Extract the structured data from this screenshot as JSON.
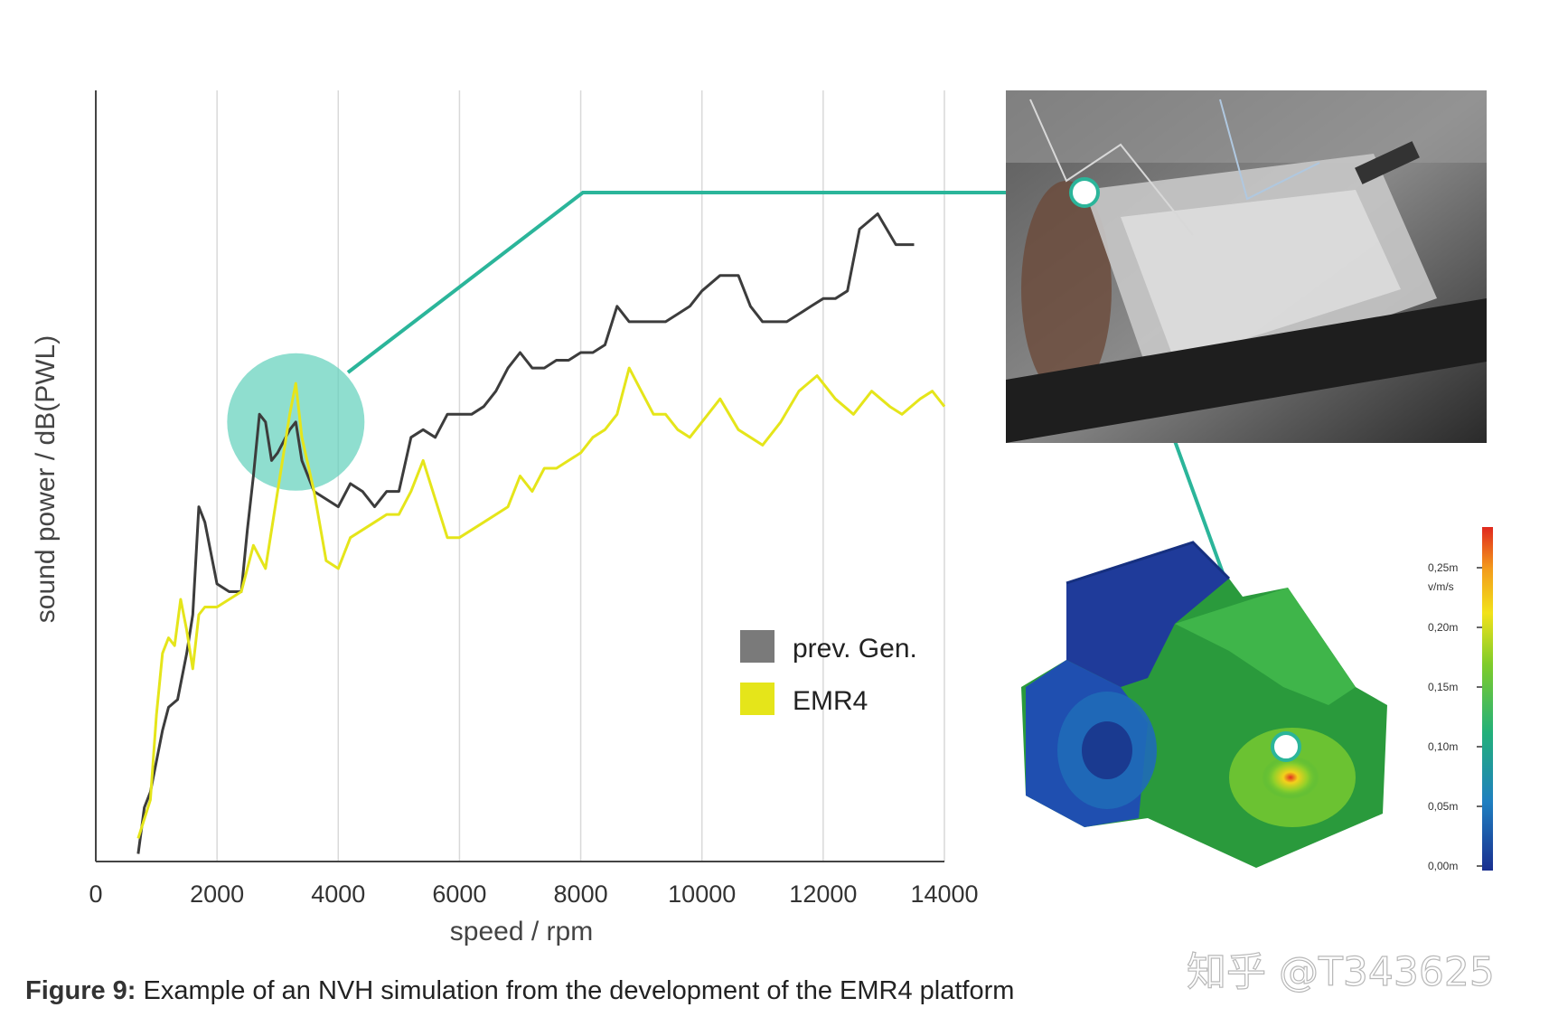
{
  "chart_data": {
    "type": "line",
    "title": "",
    "xlabel": "speed / rpm",
    "ylabel": "sound power / dB(PWL)",
    "xlim": [
      0,
      14000
    ],
    "ylim": [
      0,
      100
    ],
    "xticks": [
      "0",
      "2000",
      "4000",
      "6000",
      "8000",
      "10000",
      "12000",
      "14000"
    ],
    "grid": "vertical",
    "legend_position": "bottom-right",
    "series": [
      {
        "name": "prev. Gen.",
        "color": "#3c3c3c",
        "points": [
          [
            700,
            1
          ],
          [
            800,
            7
          ],
          [
            900,
            9
          ],
          [
            1100,
            17
          ],
          [
            1200,
            20
          ],
          [
            1350,
            21
          ],
          [
            1500,
            27
          ],
          [
            1600,
            32
          ],
          [
            1700,
            46
          ],
          [
            1800,
            44
          ],
          [
            2000,
            36
          ],
          [
            2200,
            35
          ],
          [
            2400,
            35
          ],
          [
            2500,
            43
          ],
          [
            2600,
            50
          ],
          [
            2700,
            58
          ],
          [
            2800,
            57
          ],
          [
            2900,
            52
          ],
          [
            3000,
            53
          ],
          [
            3200,
            56
          ],
          [
            3300,
            57
          ],
          [
            3400,
            52
          ],
          [
            3600,
            48
          ],
          [
            3800,
            47
          ],
          [
            4000,
            46
          ],
          [
            4200,
            49
          ],
          [
            4400,
            48
          ],
          [
            4600,
            46
          ],
          [
            4800,
            48
          ],
          [
            5000,
            48
          ],
          [
            5200,
            55
          ],
          [
            5400,
            56
          ],
          [
            5600,
            55
          ],
          [
            5800,
            58
          ],
          [
            6000,
            58
          ],
          [
            6200,
            58
          ],
          [
            6400,
            59
          ],
          [
            6600,
            61
          ],
          [
            6800,
            64
          ],
          [
            7000,
            66
          ],
          [
            7200,
            64
          ],
          [
            7400,
            64
          ],
          [
            7600,
            65
          ],
          [
            7800,
            65
          ],
          [
            8000,
            66
          ],
          [
            8200,
            66
          ],
          [
            8400,
            67
          ],
          [
            8600,
            72
          ],
          [
            8800,
            70
          ],
          [
            9000,
            70
          ],
          [
            9200,
            70
          ],
          [
            9400,
            70
          ],
          [
            9600,
            71
          ],
          [
            9800,
            72
          ],
          [
            10000,
            74
          ],
          [
            10300,
            76
          ],
          [
            10600,
            76
          ],
          [
            10800,
            72
          ],
          [
            11000,
            70
          ],
          [
            11200,
            70
          ],
          [
            11400,
            70
          ],
          [
            11600,
            71
          ],
          [
            11800,
            72
          ],
          [
            12000,
            73
          ],
          [
            12200,
            73
          ],
          [
            12400,
            74
          ],
          [
            12600,
            82
          ],
          [
            12900,
            84
          ],
          [
            13200,
            80
          ],
          [
            13500,
            80
          ]
        ]
      },
      {
        "name": "EMR4",
        "color": "#e5e51a",
        "points": [
          [
            700,
            3
          ],
          [
            900,
            8
          ],
          [
            1000,
            19
          ],
          [
            1100,
            27
          ],
          [
            1200,
            29
          ],
          [
            1300,
            28
          ],
          [
            1400,
            34
          ],
          [
            1500,
            30
          ],
          [
            1600,
            25
          ],
          [
            1700,
            32
          ],
          [
            1800,
            33
          ],
          [
            2000,
            33
          ],
          [
            2200,
            34
          ],
          [
            2400,
            35
          ],
          [
            2600,
            41
          ],
          [
            2800,
            38
          ],
          [
            3000,
            48
          ],
          [
            3200,
            58
          ],
          [
            3300,
            62
          ],
          [
            3400,
            55
          ],
          [
            3600,
            48
          ],
          [
            3800,
            39
          ],
          [
            4000,
            38
          ],
          [
            4200,
            42
          ],
          [
            4400,
            43
          ],
          [
            4600,
            44
          ],
          [
            4800,
            45
          ],
          [
            5000,
            45
          ],
          [
            5200,
            48
          ],
          [
            5400,
            52
          ],
          [
            5600,
            47
          ],
          [
            5800,
            42
          ],
          [
            6000,
            42
          ],
          [
            6400,
            44
          ],
          [
            6800,
            46
          ],
          [
            7000,
            50
          ],
          [
            7200,
            48
          ],
          [
            7400,
            51
          ],
          [
            7600,
            51
          ],
          [
            7800,
            52
          ],
          [
            8000,
            53
          ],
          [
            8200,
            55
          ],
          [
            8400,
            56
          ],
          [
            8600,
            58
          ],
          [
            8800,
            64
          ],
          [
            9000,
            61
          ],
          [
            9200,
            58
          ],
          [
            9400,
            58
          ],
          [
            9600,
            56
          ],
          [
            9800,
            55
          ],
          [
            10000,
            57
          ],
          [
            10300,
            60
          ],
          [
            10600,
            56
          ],
          [
            10800,
            55
          ],
          [
            11000,
            54
          ],
          [
            11300,
            57
          ],
          [
            11600,
            61
          ],
          [
            11900,
            63
          ],
          [
            12200,
            60
          ],
          [
            12500,
            58
          ],
          [
            12800,
            61
          ],
          [
            13100,
            59
          ],
          [
            13300,
            58
          ],
          [
            13600,
            60
          ],
          [
            13800,
            61
          ],
          [
            14000,
            59
          ]
        ]
      }
    ],
    "highlight_region": {
      "x": 3300,
      "y": 57
    }
  },
  "legend": {
    "prev_label": "prev. Gen.",
    "emr4_label": "EMR4"
  },
  "colorbar": {
    "unit": "v/m/s",
    "ticks": [
      "0,25m",
      "0,20m",
      "0,15m",
      "0,10m",
      "0,05m",
      "0,00m"
    ]
  },
  "caption": {
    "label": "Figure 9:",
    "text": " Example of an NVH simulation from the development of the EMR4 platform"
  },
  "watermark": "知乎 @T343625",
  "colors": {
    "accent": "#2bb59a",
    "highlight_circle": "#5fd0bb"
  }
}
